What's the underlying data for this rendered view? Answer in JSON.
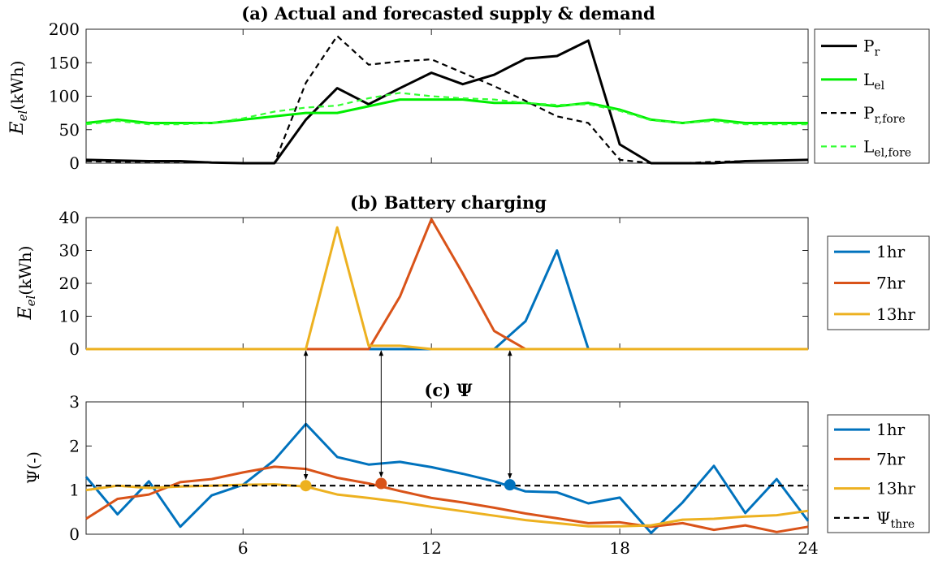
{
  "chart_data": [
    {
      "type": "line",
      "title": "(a) Actual and forecasted supply & demand",
      "ylabel_main": "E",
      "ylabel_sub": "el",
      "ylabel_unit": "(kWh)",
      "xlim": [
        1,
        24
      ],
      "ylim": [
        0,
        200
      ],
      "yticks": [
        0,
        50,
        100,
        150,
        200
      ],
      "legend_position": "right",
      "series": [
        {
          "name": "P",
          "sub": "r",
          "color": "#000000",
          "dash": "solid",
          "x": [
            1,
            2,
            3,
            4,
            5,
            6,
            7,
            8,
            9,
            10,
            11,
            12,
            13,
            14,
            15,
            16,
            17,
            18,
            19,
            20,
            21,
            22,
            23,
            24
          ],
          "y": [
            5,
            4,
            3,
            3,
            1,
            0,
            0,
            65,
            112,
            88,
            112,
            135,
            118,
            132,
            156,
            160,
            183,
            28,
            0,
            0,
            0,
            3,
            4,
            5
          ]
        },
        {
          "name": "L",
          "sub": "el",
          "color": "#00ee00",
          "dash": "solid",
          "x": [
            1,
            2,
            3,
            4,
            5,
            6,
            7,
            8,
            9,
            10,
            11,
            12,
            13,
            14,
            15,
            16,
            17,
            18,
            19,
            20,
            21,
            22,
            23,
            24
          ],
          "y": [
            60,
            65,
            60,
            60,
            60,
            65,
            70,
            75,
            75,
            85,
            95,
            95,
            95,
            90,
            90,
            85,
            90,
            80,
            65,
            60,
            65,
            60,
            60,
            60
          ]
        },
        {
          "name": "P",
          "sub": "r,fore",
          "color": "#000000",
          "dash": "dashed",
          "x": [
            1,
            2,
            3,
            4,
            5,
            6,
            7,
            8,
            9,
            10,
            11,
            12,
            13,
            14,
            15,
            16,
            17,
            18,
            19,
            20,
            21,
            22,
            23,
            24
          ],
          "y": [
            3,
            2,
            2,
            2,
            1,
            0,
            0,
            120,
            190,
            147,
            152,
            155,
            135,
            115,
            93,
            70,
            60,
            5,
            0,
            0,
            2,
            3,
            4,
            5
          ]
        },
        {
          "name": "L",
          "sub": "el,fore",
          "color": "#33ff33",
          "dash": "dashed",
          "x": [
            1,
            2,
            3,
            4,
            5,
            6,
            7,
            8,
            9,
            10,
            11,
            12,
            13,
            14,
            15,
            16,
            17,
            18,
            19,
            20,
            21,
            22,
            23,
            24
          ],
          "y": [
            58,
            63,
            58,
            58,
            60,
            67,
            77,
            83,
            86,
            97,
            105,
            100,
            97,
            95,
            90,
            87,
            88,
            78,
            64,
            60,
            63,
            58,
            58,
            58
          ]
        }
      ]
    },
    {
      "type": "line",
      "title": "(b) Battery charging",
      "ylabel_main": "E",
      "ylabel_sub": "el",
      "ylabel_unit": "(kWh)",
      "xlim": [
        1,
        24
      ],
      "ylim": [
        0,
        40
      ],
      "yticks": [
        0,
        10,
        20,
        30,
        40
      ],
      "legend_position": "right",
      "series": [
        {
          "name": "1hr",
          "color": "#0072bd",
          "dash": "solid",
          "x": [
            1,
            14,
            15,
            16,
            17,
            24
          ],
          "y": [
            0,
            0,
            8.5,
            30,
            0,
            0
          ]
        },
        {
          "name": "7hr",
          "color": "#d95319",
          "dash": "solid",
          "x": [
            1,
            10,
            11,
            12,
            13,
            14,
            15,
            24
          ],
          "y": [
            0,
            0,
            16,
            39.5,
            23,
            5.5,
            0,
            0
          ]
        },
        {
          "name": "13hr",
          "color": "#edb120",
          "dash": "solid",
          "x": [
            1,
            8,
            9,
            10,
            11,
            12,
            24
          ],
          "y": [
            0,
            0,
            37,
            1,
            1,
            0,
            0
          ]
        }
      ]
    },
    {
      "type": "line",
      "title": "(c) Ψ",
      "ylabel": "Ψ(-)",
      "xlim": [
        1,
        24
      ],
      "ylim": [
        0,
        3
      ],
      "yticks": [
        0,
        1,
        2,
        3
      ],
      "xticks": [
        6,
        12,
        18,
        24
      ],
      "legend_position": "right",
      "series": [
        {
          "name": "1hr",
          "color": "#0072bd",
          "dash": "solid",
          "x": [
            1,
            2,
            3,
            4,
            5,
            6,
            7,
            8,
            9,
            10,
            11,
            12,
            13,
            14,
            15,
            16,
            17,
            18,
            19,
            20,
            21,
            22,
            23,
            24
          ],
          "y": [
            1.3,
            0.45,
            1.2,
            0.17,
            0.88,
            1.12,
            1.68,
            2.5,
            1.75,
            1.58,
            1.64,
            1.52,
            1.37,
            1.2,
            0.97,
            0.95,
            0.7,
            0.83,
            0.03,
            0.72,
            1.55,
            0.48,
            1.25,
            0.3
          ]
        },
        {
          "name": "7hr",
          "color": "#d95319",
          "dash": "solid",
          "x": [
            1,
            2,
            3,
            4,
            5,
            6,
            7,
            8,
            9,
            10,
            11,
            12,
            13,
            14,
            15,
            16,
            17,
            18,
            19,
            20,
            21,
            22,
            23,
            24
          ],
          "y": [
            0.35,
            0.8,
            0.9,
            1.18,
            1.25,
            1.4,
            1.53,
            1.48,
            1.28,
            1.15,
            0.98,
            0.82,
            0.72,
            0.6,
            0.47,
            0.36,
            0.25,
            0.27,
            0.17,
            0.25,
            0.1,
            0.2,
            0.05,
            0.17
          ]
        },
        {
          "name": "13hr",
          "color": "#edb120",
          "dash": "solid",
          "x": [
            1,
            2,
            3,
            4,
            5,
            6,
            7,
            8,
            9,
            10,
            11,
            12,
            13,
            14,
            15,
            16,
            17,
            18,
            19,
            20,
            21,
            22,
            23,
            24
          ],
          "y": [
            1.0,
            1.1,
            1.05,
            1.08,
            1.1,
            1.12,
            1.13,
            1.08,
            0.9,
            0.82,
            0.73,
            0.62,
            0.52,
            0.42,
            0.32,
            0.25,
            0.18,
            0.18,
            0.2,
            0.33,
            0.35,
            0.4,
            0.43,
            0.53
          ]
        },
        {
          "name": "Ψ",
          "sub": "thre",
          "color": "#000000",
          "dash": "dashed",
          "x": [
            1,
            24
          ],
          "y": [
            1.1,
            1.1
          ]
        }
      ],
      "markers": [
        {
          "series": "13hr",
          "x": 8,
          "y": 1.1,
          "color": "#edb120"
        },
        {
          "series": "7hr",
          "x": 10.4,
          "y": 1.15,
          "color": "#d95319"
        },
        {
          "series": "1hr",
          "x": 14.5,
          "y": 1.12,
          "color": "#0072bd"
        }
      ],
      "arrows": [
        {
          "x": 8
        },
        {
          "x": 10.4
        },
        {
          "x": 14.5
        }
      ]
    }
  ]
}
